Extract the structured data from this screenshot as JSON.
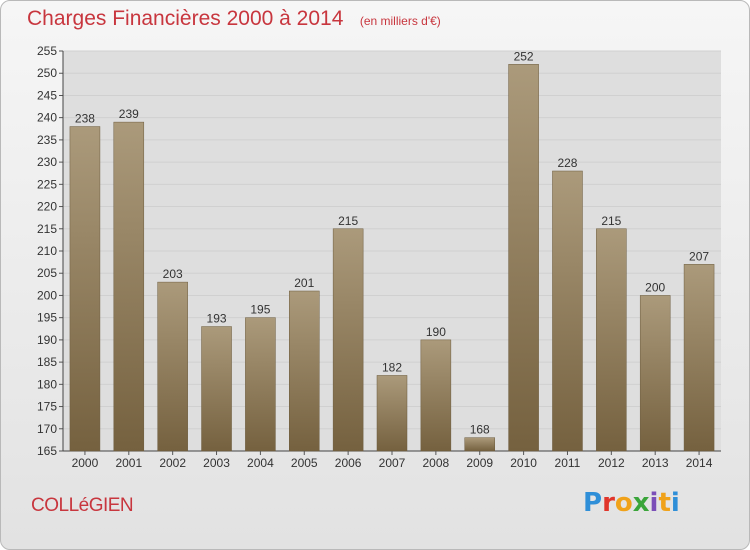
{
  "header": {
    "title": "Charges Financières 2000 à 2014",
    "subtitle": "(en milliers d'€)"
  },
  "footer": {
    "commune": "COLLéGIEN",
    "logo_text": "Proxiti"
  },
  "colors": {
    "title": "#c8363e",
    "bar_light": "#ab9a7b",
    "bar_dark": "#75613f",
    "grid": "#d0d0d0",
    "plot_bg": "#dedede"
  },
  "chart_data": {
    "type": "bar",
    "title": "Charges Financières 2000 à 2014",
    "subtitle": "(en milliers d'€)",
    "categories": [
      "2000",
      "2001",
      "2002",
      "2003",
      "2004",
      "2005",
      "2006",
      "2007",
      "2008",
      "2009",
      "2010",
      "2011",
      "2012",
      "2013",
      "2014"
    ],
    "values": [
      238,
      239,
      203,
      193,
      195,
      201,
      215,
      182,
      190,
      168,
      252,
      228,
      215,
      200,
      207
    ],
    "ylim": [
      165,
      255
    ],
    "ytick_step": 5,
    "grid": true,
    "legend": "none"
  }
}
